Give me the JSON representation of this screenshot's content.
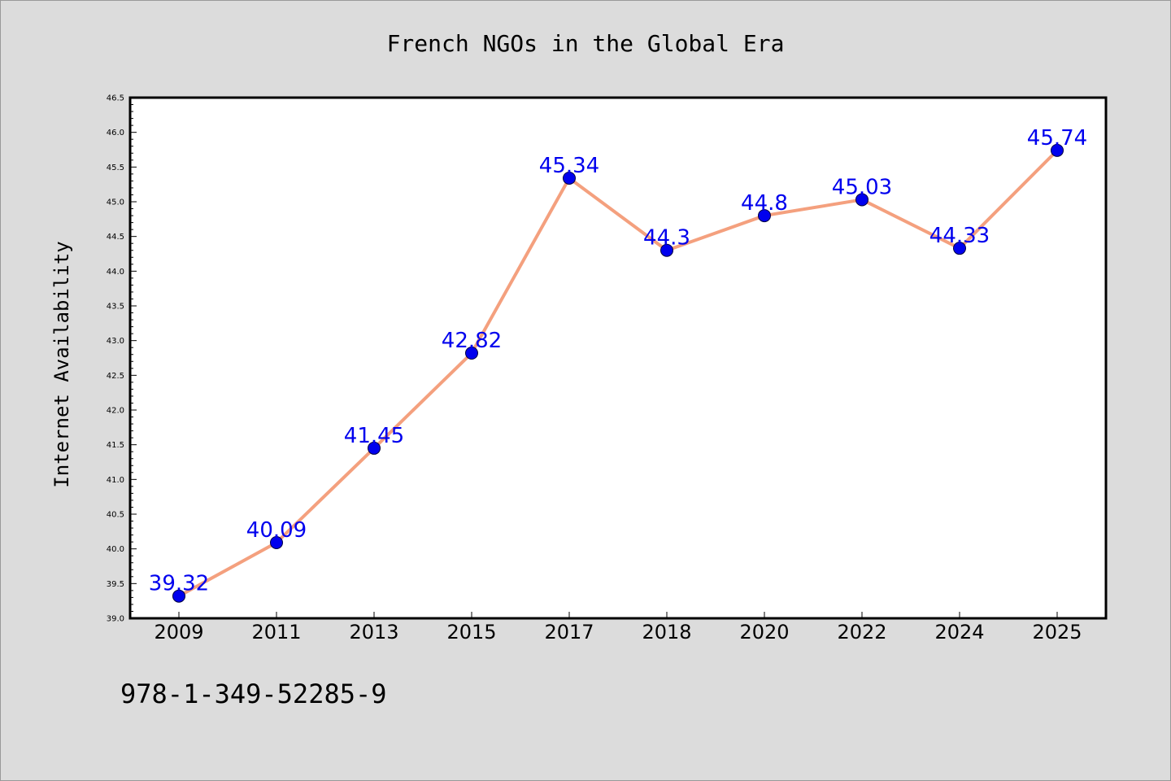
{
  "chart_data": {
    "type": "line",
    "title": "French NGOs in the Global Era",
    "xlabel": "",
    "ylabel": "Internet Availability",
    "categories": [
      "2009",
      "2011",
      "2013",
      "2015",
      "2017",
      "2018",
      "2020",
      "2022",
      "2024",
      "2025"
    ],
    "values": [
      39.32,
      40.09,
      41.45,
      42.82,
      45.34,
      44.3,
      44.8,
      45.03,
      44.33,
      45.74
    ],
    "data_labels": [
      "39.32",
      "40.09",
      "41.45",
      "42.82",
      "45.34",
      "44.3",
      "44.8",
      "45.03",
      "44.33",
      "45.74"
    ],
    "ylim": [
      39.0,
      46.5
    ],
    "yticks": [
      "39.0",
      "39.5",
      "40.0",
      "40.5",
      "41.0",
      "41.5",
      "42.0",
      "42.5",
      "43.0",
      "43.5",
      "44.0",
      "44.5",
      "45.0",
      "45.5",
      "46.0",
      "46.5"
    ],
    "grid": false,
    "line_color": "#f4a07e",
    "marker_color": "#0000ee",
    "label_color": "#0000ee"
  },
  "footnote": "978-1-349-52285-9"
}
